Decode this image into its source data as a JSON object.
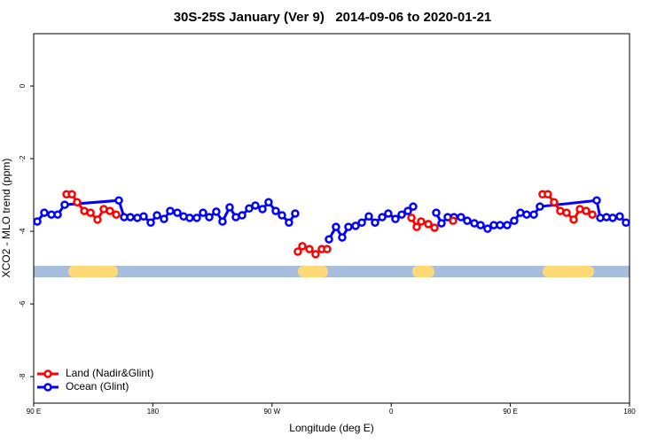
{
  "chart_data": {
    "type": "line",
    "title": "30S-25S January (Ver 9)   2014-09-06 to 2020-01-21",
    "x_label": "Longitude (deg E)",
    "y_label": "XCO2 - MLO trend (ppm)",
    "xlim": [
      90,
      540
    ],
    "xticks": [
      {
        "value": 90,
        "label": "90 E"
      },
      {
        "value": 180,
        "label": "180"
      },
      {
        "value": 270,
        "label": "90 W"
      },
      {
        "value": 360,
        "label": "0"
      },
      {
        "value": 450,
        "label": "90 E"
      },
      {
        "value": 540,
        "label": "180"
      }
    ],
    "ylim": [
      -8.73,
      1.44
    ],
    "yticks": [
      0,
      -2,
      -4,
      -6,
      -8
    ],
    "legend": "bottom-left",
    "series": [
      {
        "name": "Land (Nadir&Glint)",
        "color": "#ff0000",
        "x": [
          114.8,
          118.8,
          122.8,
          128.2,
          132.9,
          138.2,
          142.9,
          147.6,
          152.3,
          null,
          289.5,
          292.9,
          298.2,
          302.9,
          307.6,
          311.6,
          null,
          375.3,
          379.3,
          382.6,
          388.0,
          392.7,
          null,
          406.7,
          null,
          474.3,
          478.3,
          483.0,
          487.7,
          492.4,
          497.8,
          502.5,
          507.2,
          511.9
        ],
        "values": [
          -2.98,
          -2.98,
          -3.2,
          -3.44,
          -3.49,
          -3.68,
          -3.39,
          -3.44,
          -3.54,
          null,
          -4.56,
          -4.41,
          -4.49,
          -4.63,
          -4.49,
          -4.49,
          null,
          -3.63,
          -3.88,
          -3.73,
          -3.8,
          -3.9,
          null,
          -3.71,
          null,
          -2.98,
          -2.98,
          -3.2,
          -3.44,
          -3.49,
          -3.68,
          -3.39,
          -3.44,
          -3.54
        ]
      },
      {
        "name": "Ocean (Glint)",
        "color": "#0000ff",
        "x": [
          92.7,
          98.0,
          103.4,
          108.1,
          113.4,
          154.3,
          158.3,
          163.0,
          168.3,
          173.0,
          178.4,
          183.1,
          188.4,
          193.1,
          198.5,
          203.2,
          207.8,
          213.2,
          217.9,
          222.6,
          227.9,
          232.6,
          238.0,
          242.7,
          247.4,
          252.7,
          257.4,
          262.8,
          267.4,
          272.8,
          277.5,
          282.8,
          287.5,
          null,
          313.0,
          318.3,
          323.0,
          327.7,
          333.1,
          337.8,
          343.1,
          347.8,
          353.2,
          357.8,
          363.2,
          367.9,
          372.6,
          376.6,
          null,
          394.0,
          398.0,
          402.7,
          407.4,
          412.7,
          417.4,
          422.8,
          427.5,
          432.8,
          437.5,
          442.2,
          447.6,
          452.9,
          457.6,
          462.3,
          467.7,
          472.3,
          515.2,
          517.9,
          522.6,
          527.3,
          532.6,
          537.3
        ],
        "values": [
          -3.73,
          -3.49,
          -3.54,
          -3.54,
          -3.27,
          -3.15,
          -3.61,
          -3.61,
          -3.63,
          -3.59,
          -3.76,
          -3.56,
          -3.66,
          -3.44,
          -3.49,
          -3.59,
          -3.63,
          -3.63,
          -3.49,
          -3.61,
          -3.46,
          -3.73,
          -3.34,
          -3.61,
          -3.56,
          -3.37,
          -3.29,
          -3.39,
          -3.2,
          -3.44,
          -3.56,
          -3.76,
          -3.51,
          null,
          -4.22,
          -3.88,
          -4.17,
          -3.88,
          -3.85,
          -3.76,
          -3.59,
          -3.76,
          -3.61,
          -3.51,
          -3.66,
          -3.54,
          -3.44,
          -3.32,
          null,
          -3.49,
          -3.78,
          -3.61,
          -3.61,
          -3.61,
          -3.71,
          -3.78,
          -3.83,
          -3.93,
          -3.83,
          -3.83,
          -3.83,
          -3.71,
          -3.49,
          -3.54,
          -3.54,
          -3.32,
          -3.15,
          -3.63,
          -3.61,
          -3.63,
          -3.59,
          -3.76
        ]
      }
    ]
  }
}
